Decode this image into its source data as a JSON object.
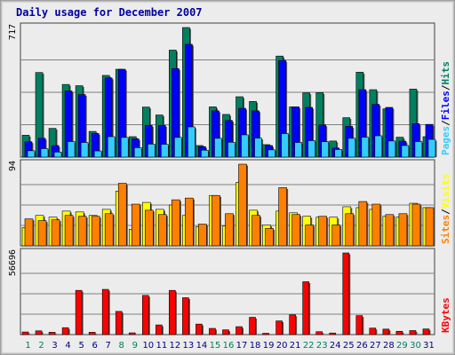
{
  "chart_data": {
    "type": "bar",
    "title": "Daily usage for December 2007",
    "categories": [
      "1",
      "2",
      "3",
      "4",
      "5",
      "6",
      "7",
      "8",
      "9",
      "10",
      "11",
      "12",
      "13",
      "14",
      "15",
      "16",
      "17",
      "18",
      "19",
      "20",
      "21",
      "22",
      "23",
      "24",
      "25",
      "26",
      "27",
      "28",
      "29",
      "30",
      "31"
    ],
    "weekend_days": [
      "1",
      "2",
      "8",
      "9",
      "15",
      "16",
      "22",
      "23",
      "29",
      "30"
    ],
    "panels": [
      {
        "name": "hits-files-pages",
        "ymax_label": "717",
        "ylim": [
          0,
          717
        ],
        "right_label": [
          "Pages",
          "/",
          "Files",
          "/",
          "Hits"
        ],
        "right_label_colors": [
          "#33ccff",
          "#000000",
          "#0000ff",
          "#000000",
          "#008060"
        ],
        "series": [
          {
            "name": "Hits",
            "color": "#008060",
            "values": [
              121,
              468,
              159,
              402,
              395,
              142,
              452,
              486,
              113,
              277,
              233,
              592,
              717,
              64,
              278,
              236,
              334,
              308,
              69,
              559,
              278,
              355,
              357,
              89,
              218,
              470,
              373,
              267,
              110,
              376,
              113
            ]
          },
          {
            "name": "Files",
            "color": "#0000ff",
            "values": [
              85,
              104,
              64,
              366,
              346,
              131,
              438,
              486,
              101,
              175,
              175,
              490,
              624,
              58,
              256,
              203,
              270,
              256,
              64,
              535,
              278,
              275,
              178,
              50,
              170,
              373,
              292,
              275,
              88,
              185,
              181
            ]
          },
          {
            "name": "Pages",
            "color": "#33ccff",
            "values": [
              35,
              47,
              28,
              86,
              81,
              34,
              113,
              109,
              52,
              72,
              71,
              109,
              167,
              38,
              104,
              82,
              123,
              105,
              40,
              130,
              81,
              91,
              85,
              42,
              104,
              110,
              118,
              89,
              64,
              86,
              98
            ]
          }
        ]
      },
      {
        "name": "sites-visits",
        "ymax_label": "94",
        "ylim": [
          0,
          94
        ],
        "right_label": [
          "Sites",
          "/",
          "Visits"
        ],
        "right_label_colors": [
          "#ff8000",
          "#000000",
          "#ffff00"
        ],
        "series": [
          {
            "name": "Visits",
            "color": "#ffff00",
            "values": [
              21,
              35,
              33,
              40,
              39,
              35,
              42,
              63,
              19,
              50,
              42,
              47,
              35,
              22,
              58,
              23,
              73,
              41,
              24,
              40,
              38,
              34,
              33,
              33,
              45,
              44,
              42,
              34,
              33,
              49,
              44
            ]
          },
          {
            "name": "Sites",
            "color": "#ff8000",
            "values": [
              31,
              29,
              30,
              35,
              34,
              34,
              37,
              72,
              48,
              41,
              36,
              53,
              55,
              25,
              58,
              37,
              94,
              35,
              20,
              67,
              36,
              24,
              34,
              24,
              37,
              51,
              48,
              36,
              37,
              48,
              44
            ]
          }
        ]
      },
      {
        "name": "kbytes",
        "ymax_label": "56696",
        "ylim": [
          0,
          56696
        ],
        "right_label": [
          "KBytes"
        ],
        "right_label_colors": [
          "#ff0000"
        ],
        "series": [
          {
            "name": "KBytes",
            "color": "#ff0000",
            "values": [
              1800,
              2600,
              1600,
              4800,
              30700,
              1600,
              31400,
              16100,
              1200,
              27200,
              6700,
              30700,
              25600,
              7300,
              4300,
              3300,
              5500,
              12000,
              900,
              9500,
              13700,
              36700,
              2000,
              1100,
              56696,
              13200,
              4500,
              3800,
              2300,
              2800,
              3900
            ]
          }
        ]
      }
    ],
    "colors": {
      "background": "#ececec",
      "frame": "#c0c0c0",
      "title": "#0000a0",
      "weekday_label": "#000080",
      "weekend_label": "#008060",
      "gridline": "#808080"
    }
  }
}
